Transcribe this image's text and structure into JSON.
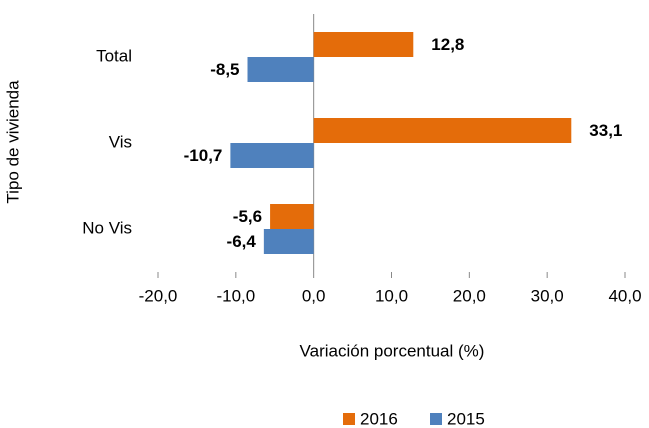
{
  "chart_data": {
    "type": "bar",
    "orientation": "horizontal",
    "categories": [
      "Total",
      "Vis",
      "No Vis"
    ],
    "series": [
      {
        "name": "2016",
        "color": "#e46c0a",
        "label_color": "#a65619",
        "values": [
          12.8,
          33.1,
          -5.6
        ],
        "value_labels": [
          "12,8",
          "33,1",
          "-5,6"
        ]
      },
      {
        "name": "2015",
        "color": "#4f81bd",
        "label_color": "#1f3864",
        "values": [
          -8.5,
          -10.7,
          -6.4
        ],
        "value_labels": [
          "-8,5",
          "-10,7",
          "-6,4"
        ]
      }
    ],
    "xlim": [
      -20,
      40
    ],
    "xticks": [
      {
        "value": -20,
        "label": "-20,0"
      },
      {
        "value": -10,
        "label": "-10,0"
      },
      {
        "value": 0,
        "label": "0,0"
      },
      {
        "value": 10,
        "label": "10,0"
      },
      {
        "value": 20,
        "label": "20,0"
      },
      {
        "value": 30,
        "label": "30,0"
      },
      {
        "value": 40,
        "label": "40,0"
      }
    ],
    "x_label": "Variación porcentual (%)",
    "y_label": "Tipo de vivienda",
    "legend": "bottom"
  }
}
